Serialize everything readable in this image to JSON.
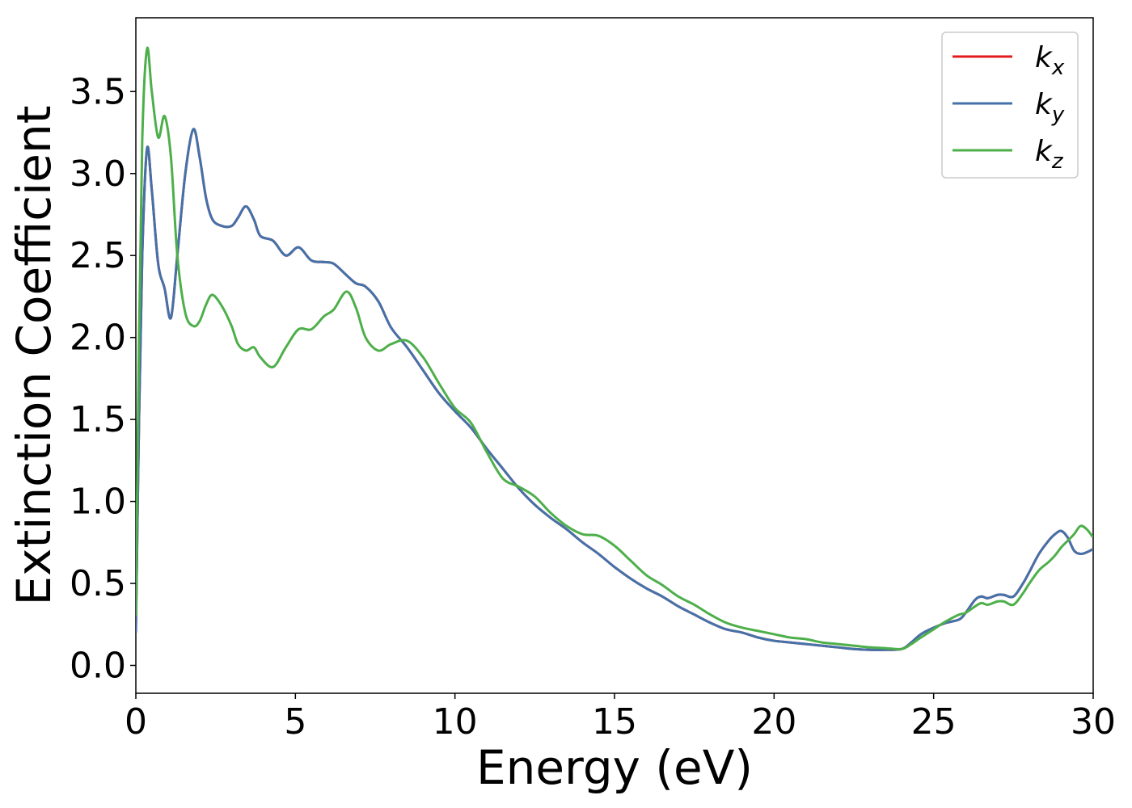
{
  "chart_data": {
    "type": "line",
    "xlabel": "Energy (eV)",
    "ylabel": "Extinction Coefficient",
    "xlim": [
      0,
      30
    ],
    "ylim": [
      -0.17,
      3.95
    ],
    "xticks": [
      0,
      5,
      10,
      15,
      20,
      25,
      30
    ],
    "xtick_labels": [
      "0",
      "5",
      "10",
      "15",
      "20",
      "25",
      "30"
    ],
    "yticks": [
      0.0,
      0.5,
      1.0,
      1.5,
      2.0,
      2.5,
      3.0,
      3.5
    ],
    "ytick_labels": [
      "0.0",
      "0.5",
      "1.0",
      "1.5",
      "2.0",
      "2.5",
      "3.0",
      "3.5"
    ],
    "grid": false,
    "legend_position": "top-right",
    "series": [
      {
        "name": "k",
        "subscript": "x",
        "color": "#e41a1c",
        "x": [
          0,
          0.1,
          0.2,
          0.35,
          0.5,
          0.7,
          0.9,
          1.1,
          1.3,
          1.55,
          1.8,
          2.0,
          2.2,
          2.4,
          2.7,
          3.0,
          3.2,
          3.45,
          3.7,
          3.9,
          4.3,
          4.7,
          5.1,
          5.5,
          5.9,
          6.2,
          6.6,
          6.9,
          7.2,
          7.6,
          8.0,
          8.5,
          9.0,
          9.5,
          10.0,
          10.5,
          11.0,
          11.5,
          12.0,
          12.5,
          13.0,
          13.5,
          14.0,
          14.5,
          15.0,
          15.5,
          16.0,
          16.5,
          17.0,
          17.5,
          18.0,
          18.5,
          19.0,
          19.5,
          20.0,
          20.5,
          21.0,
          21.5,
          22.0,
          22.5,
          23.0,
          23.5,
          24.0,
          24.3,
          24.6,
          25.0,
          25.4,
          25.8,
          26.0,
          26.3,
          26.5,
          26.7,
          27.0,
          27.2,
          27.5,
          27.8,
          28.0,
          28.3,
          28.6,
          28.8,
          29.0,
          29.2,
          29.4,
          29.6,
          29.8,
          30.0
        ],
        "y": [
          0.2,
          1.5,
          2.5,
          3.15,
          2.9,
          2.45,
          2.3,
          2.12,
          2.5,
          3.0,
          3.27,
          3.1,
          2.85,
          2.72,
          2.68,
          2.68,
          2.73,
          2.8,
          2.72,
          2.62,
          2.59,
          2.5,
          2.55,
          2.47,
          2.46,
          2.45,
          2.38,
          2.33,
          2.31,
          2.22,
          2.06,
          1.94,
          1.8,
          1.66,
          1.55,
          1.45,
          1.32,
          1.2,
          1.08,
          0.98,
          0.9,
          0.83,
          0.75,
          0.68,
          0.6,
          0.53,
          0.47,
          0.42,
          0.36,
          0.31,
          0.26,
          0.22,
          0.2,
          0.17,
          0.15,
          0.14,
          0.13,
          0.12,
          0.11,
          0.1,
          0.095,
          0.095,
          0.1,
          0.14,
          0.19,
          0.23,
          0.26,
          0.28,
          0.32,
          0.4,
          0.42,
          0.41,
          0.43,
          0.43,
          0.42,
          0.5,
          0.57,
          0.68,
          0.76,
          0.8,
          0.82,
          0.78,
          0.7,
          0.68,
          0.69,
          0.71
        ]
      },
      {
        "name": "k",
        "subscript": "y",
        "color": "#4372aa",
        "x": [
          0,
          0.1,
          0.2,
          0.35,
          0.5,
          0.7,
          0.9,
          1.1,
          1.3,
          1.55,
          1.8,
          2.0,
          2.2,
          2.4,
          2.7,
          3.0,
          3.2,
          3.45,
          3.7,
          3.9,
          4.3,
          4.7,
          5.1,
          5.5,
          5.9,
          6.2,
          6.6,
          6.9,
          7.2,
          7.6,
          8.0,
          8.5,
          9.0,
          9.5,
          10.0,
          10.5,
          11.0,
          11.5,
          12.0,
          12.5,
          13.0,
          13.5,
          14.0,
          14.5,
          15.0,
          15.5,
          16.0,
          16.5,
          17.0,
          17.5,
          18.0,
          18.5,
          19.0,
          19.5,
          20.0,
          20.5,
          21.0,
          21.5,
          22.0,
          22.5,
          23.0,
          23.5,
          24.0,
          24.3,
          24.6,
          25.0,
          25.4,
          25.8,
          26.0,
          26.3,
          26.5,
          26.7,
          27.0,
          27.2,
          27.5,
          27.8,
          28.0,
          28.3,
          28.6,
          28.8,
          29.0,
          29.2,
          29.4,
          29.6,
          29.8,
          30.0
        ],
        "y": [
          0.2,
          1.5,
          2.5,
          3.15,
          2.9,
          2.45,
          2.3,
          2.12,
          2.5,
          3.0,
          3.27,
          3.1,
          2.85,
          2.72,
          2.68,
          2.68,
          2.73,
          2.8,
          2.72,
          2.62,
          2.59,
          2.5,
          2.55,
          2.47,
          2.46,
          2.45,
          2.38,
          2.33,
          2.31,
          2.22,
          2.06,
          1.94,
          1.8,
          1.66,
          1.55,
          1.45,
          1.32,
          1.2,
          1.08,
          0.98,
          0.9,
          0.83,
          0.75,
          0.68,
          0.6,
          0.53,
          0.47,
          0.42,
          0.36,
          0.31,
          0.26,
          0.22,
          0.2,
          0.17,
          0.15,
          0.14,
          0.13,
          0.12,
          0.11,
          0.1,
          0.095,
          0.095,
          0.1,
          0.14,
          0.19,
          0.23,
          0.26,
          0.28,
          0.32,
          0.4,
          0.42,
          0.41,
          0.43,
          0.43,
          0.42,
          0.5,
          0.57,
          0.68,
          0.76,
          0.8,
          0.82,
          0.78,
          0.7,
          0.68,
          0.69,
          0.71
        ]
      },
      {
        "name": "k",
        "subscript": "z",
        "color": "#4daf4a",
        "x": [
          0,
          0.1,
          0.2,
          0.35,
          0.5,
          0.7,
          0.9,
          1.1,
          1.3,
          1.55,
          1.8,
          2.0,
          2.2,
          2.4,
          2.7,
          3.0,
          3.2,
          3.45,
          3.7,
          3.9,
          4.3,
          4.7,
          5.1,
          5.5,
          5.9,
          6.2,
          6.6,
          6.9,
          7.2,
          7.6,
          8.0,
          8.5,
          9.0,
          9.5,
          10.0,
          10.5,
          11.0,
          11.5,
          12.0,
          12.5,
          13.0,
          13.5,
          14.0,
          14.5,
          15.0,
          15.5,
          16.0,
          16.5,
          17.0,
          17.5,
          18.0,
          18.5,
          19.0,
          19.5,
          20.0,
          20.5,
          21.0,
          21.5,
          22.0,
          22.5,
          23.0,
          23.5,
          24.0,
          24.3,
          24.6,
          25.0,
          25.4,
          25.8,
          26.0,
          26.3,
          26.5,
          26.7,
          27.0,
          27.2,
          27.5,
          27.8,
          28.0,
          28.3,
          28.6,
          28.8,
          29.0,
          29.2,
          29.4,
          29.6,
          29.8,
          30.0
        ],
        "y": [
          0.3,
          2.0,
          3.2,
          3.76,
          3.5,
          3.22,
          3.35,
          3.1,
          2.5,
          2.15,
          2.07,
          2.1,
          2.2,
          2.26,
          2.19,
          2.07,
          1.96,
          1.92,
          1.94,
          1.88,
          1.82,
          1.94,
          2.05,
          2.05,
          2.13,
          2.17,
          2.28,
          2.18,
          2.0,
          1.92,
          1.96,
          1.98,
          1.88,
          1.72,
          1.57,
          1.48,
          1.3,
          1.14,
          1.09,
          1.03,
          0.93,
          0.85,
          0.8,
          0.79,
          0.73,
          0.64,
          0.55,
          0.49,
          0.42,
          0.37,
          0.31,
          0.26,
          0.23,
          0.21,
          0.19,
          0.17,
          0.16,
          0.14,
          0.13,
          0.12,
          0.11,
          0.105,
          0.1,
          0.13,
          0.17,
          0.22,
          0.27,
          0.31,
          0.32,
          0.36,
          0.38,
          0.37,
          0.39,
          0.39,
          0.37,
          0.44,
          0.5,
          0.58,
          0.63,
          0.67,
          0.72,
          0.76,
          0.8,
          0.85,
          0.83,
          0.78
        ]
      }
    ]
  }
}
